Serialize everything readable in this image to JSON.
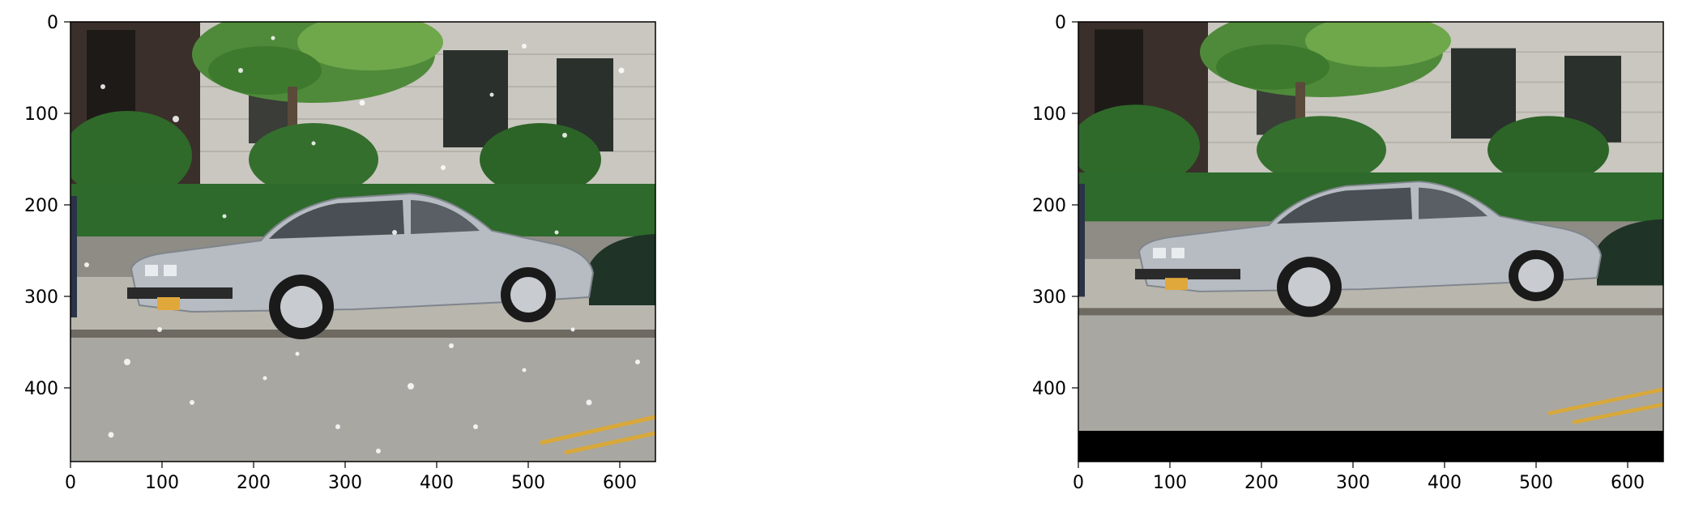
{
  "figure": {
    "panels": [
      {
        "name": "left-panel",
        "xticks": [
          "0",
          "100",
          "200",
          "300",
          "400",
          "500",
          "600"
        ],
        "yticks": [
          "0",
          "100",
          "200",
          "300",
          "400"
        ],
        "image": "street photo: silver sedan parked at curb, snowflakes, hedge and building behind",
        "letterbox_bottom": false
      },
      {
        "name": "right-panel",
        "xticks": [
          "0",
          "100",
          "200",
          "300",
          "400",
          "500",
          "600"
        ],
        "yticks": [
          "0",
          "100",
          "200",
          "300",
          "400"
        ],
        "image": "same street photo with snow removed and black band at bottom",
        "letterbox_bottom": true
      }
    ]
  }
}
